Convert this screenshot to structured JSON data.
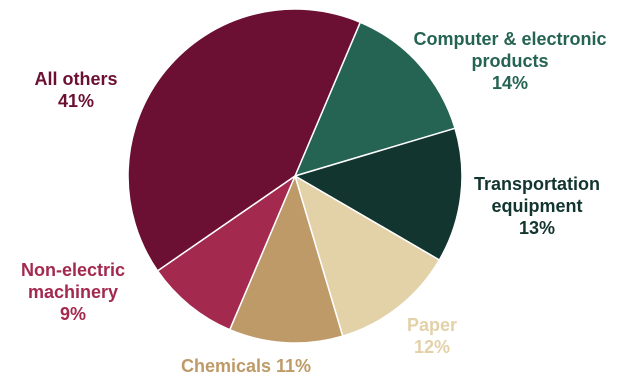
{
  "chart_data": {
    "type": "pie",
    "title": "",
    "slices": [
      {
        "label": "Computer & electronic products",
        "value": 14,
        "color": "#256352",
        "text_lines": [
          "Computer & electronic",
          "products",
          "14%"
        ]
      },
      {
        "label": "Transportation equipment",
        "value": 13,
        "color": "#12352F",
        "text_lines": [
          "Transportation",
          "equipment",
          "13%"
        ]
      },
      {
        "label": "Paper",
        "value": 12,
        "color": "#E3D1A8",
        "text_lines": [
          "Paper",
          "12%"
        ]
      },
      {
        "label": "Chemicals",
        "value": 11,
        "color": "#BD9A67",
        "text_lines": [
          "Chemicals 11%"
        ]
      },
      {
        "label": "Non-electric machinery",
        "value": 9,
        "color": "#A3294F",
        "text_lines": [
          "Non-electric",
          "machinery",
          "9%"
        ]
      },
      {
        "label": "All others",
        "value": 41,
        "color": "#6B1033",
        "text_lines": [
          "All others",
          "41%"
        ]
      }
    ],
    "start_angle_deg": -67,
    "direction": "clockwise",
    "legend": "none"
  }
}
